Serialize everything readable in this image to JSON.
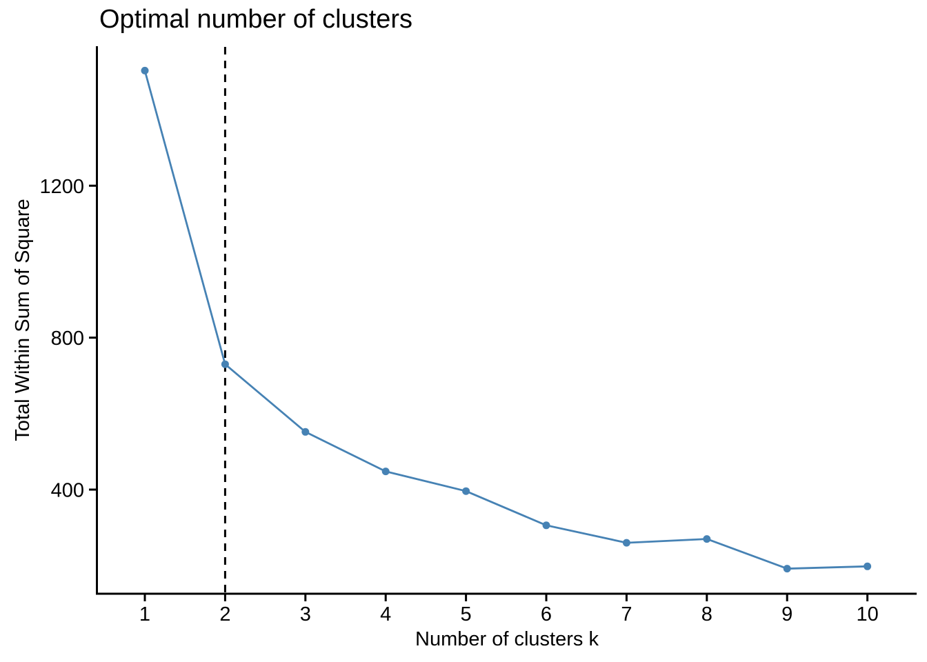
{
  "title": "Optimal number of clusters",
  "chart_data": {
    "type": "line",
    "title": "Optimal number of clusters",
    "xlabel": "Number of clusters k",
    "ylabel": "Total Within Sum of Square",
    "x": [
      1,
      2,
      3,
      4,
      5,
      6,
      7,
      8,
      9,
      10
    ],
    "series": [
      {
        "name": "total_within_sum_of_square",
        "values": [
          1503,
          730,
          552,
          448,
          396,
          306,
          260,
          270,
          192,
          198
        ]
      }
    ],
    "x_ticks": [
      "1",
      "2",
      "3",
      "4",
      "5",
      "6",
      "7",
      "8",
      "9",
      "10"
    ],
    "y_ticks": [
      400,
      800,
      1200
    ],
    "y_tick_labels": [
      "400",
      "800",
      "1200"
    ],
    "xlim": [
      0.55,
      10.45
    ],
    "ylim": [
      126,
      1571
    ],
    "grid": false,
    "legend_position": "none",
    "annotations": [
      {
        "type": "vline",
        "x": 2,
        "linetype": "dashed",
        "color": "#000000"
      }
    ],
    "colors": {
      "line": "#4682B4",
      "point": "#4682B4",
      "axis": "#000000",
      "text": "#000000",
      "background": "#ffffff"
    }
  }
}
